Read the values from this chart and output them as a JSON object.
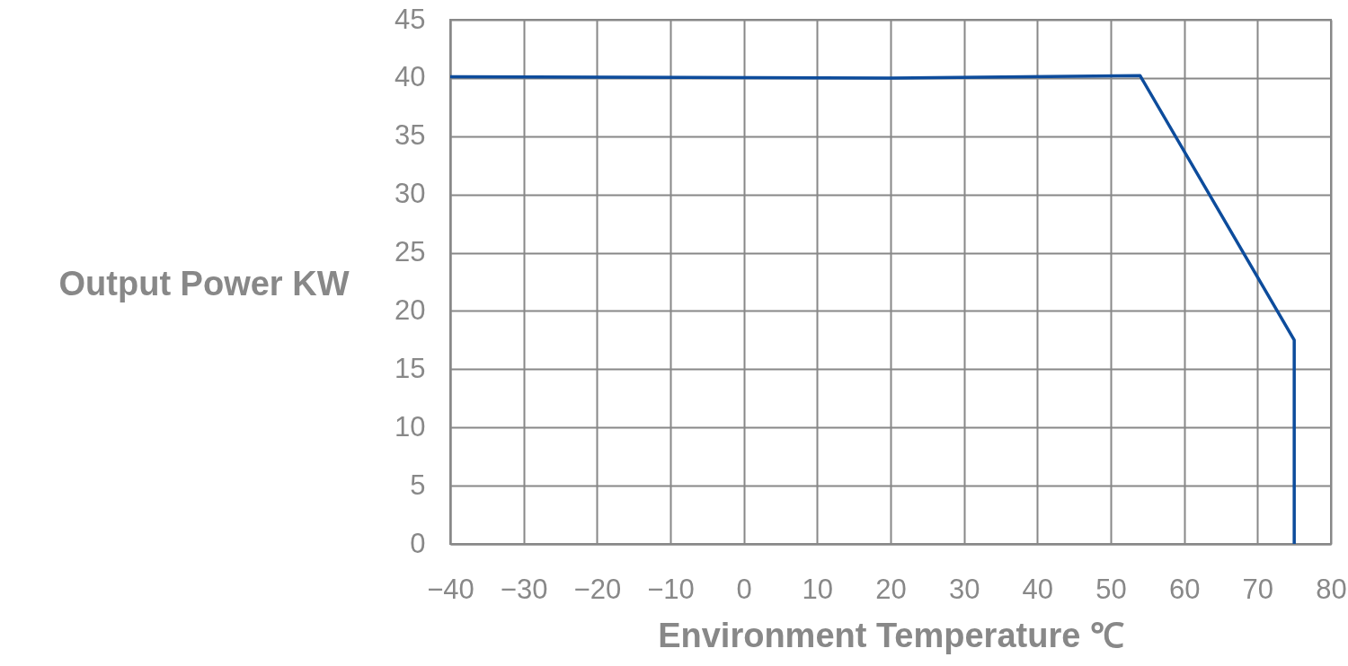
{
  "chart_data": {
    "type": "line",
    "xlabel": "Environment Temperature ℃",
    "ylabel": "Output Power KW",
    "series": [
      {
        "color": "#0d4c9c",
        "x": [
          -40,
          20,
          54,
          75,
          75
        ],
        "values": [
          40.1,
          40.0,
          40.2,
          17.5,
          0
        ]
      }
    ],
    "xlim": [
      -40,
      80
    ],
    "xticks": [
      -40,
      -30,
      -20,
      -10,
      0,
      10,
      20,
      30,
      40,
      50,
      60,
      70,
      80
    ],
    "ylim": [
      0,
      45
    ],
    "yticks": [
      0,
      5,
      10,
      15,
      20,
      25,
      30,
      35,
      40,
      45
    ],
    "grid": true,
    "marker": "none",
    "line_style": "solid"
  }
}
